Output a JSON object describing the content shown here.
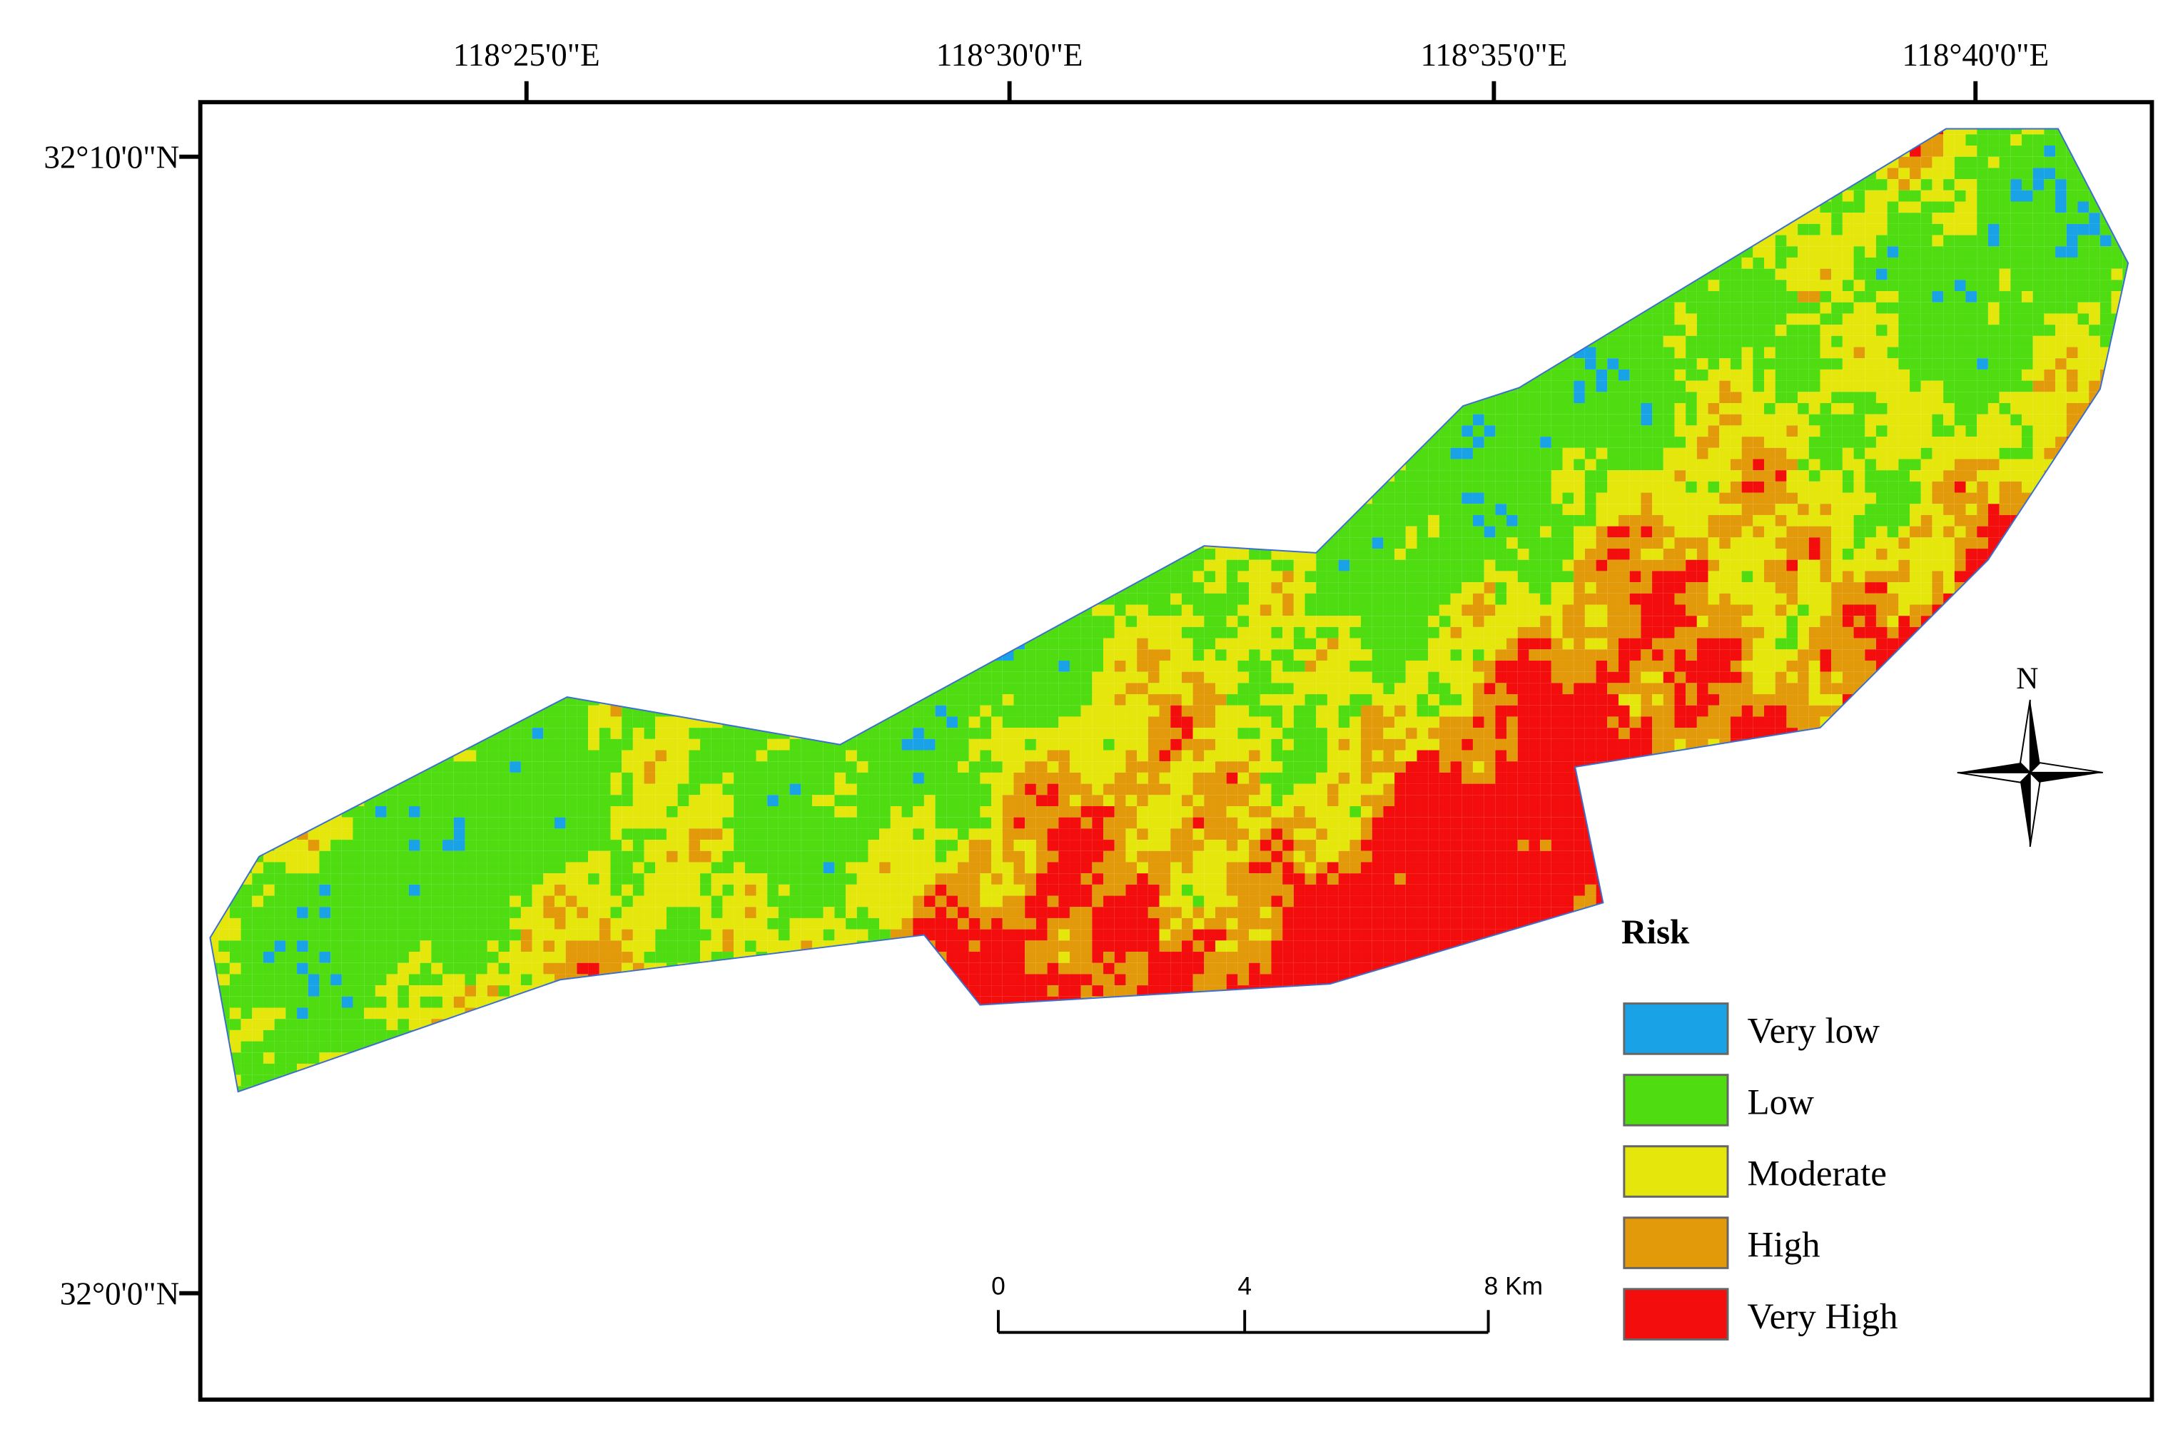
{
  "map": {
    "longitude_labels": [
      "118°25'0\"E",
      "118°30'0\"E",
      "118°35'0\"E",
      "118°40'0\"E"
    ],
    "latitude_labels": [
      "32°10'0\"N",
      "32°0'0\"N"
    ],
    "north": "N",
    "scale_bar": [
      "0",
      "4",
      "8 Km"
    ]
  },
  "legend": {
    "title": "Risk",
    "items": [
      {
        "label": "Very low",
        "color": "#19a2e6"
      },
      {
        "label": "Low",
        "color": "#4fdd12"
      },
      {
        "label": "Moderate",
        "color": "#e4e60c"
      },
      {
        "label": "High",
        "color": "#e39a0a"
      },
      {
        "label": "Very High",
        "color": "#f30d0d"
      }
    ]
  }
}
